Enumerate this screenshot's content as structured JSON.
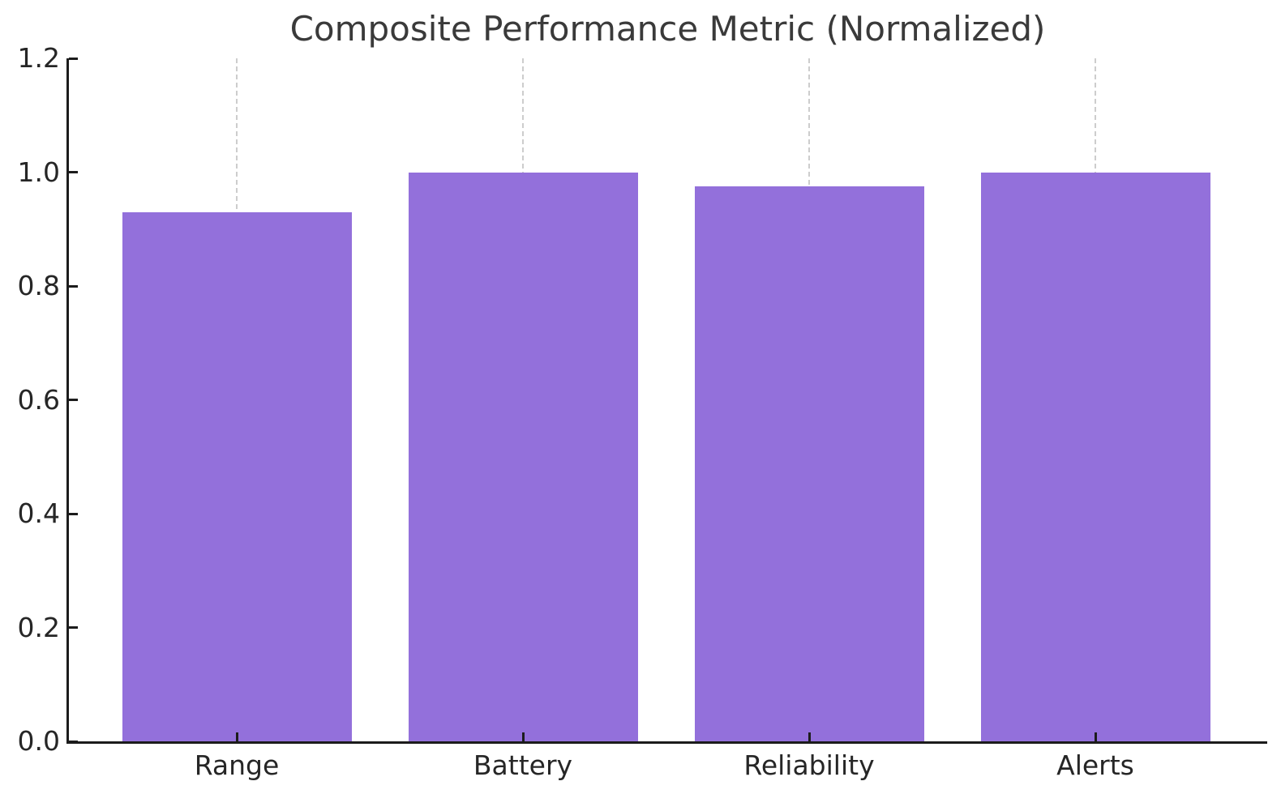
{
  "chart_data": {
    "type": "bar",
    "title": "Composite Performance Metric (Normalized)",
    "categories": [
      "Range",
      "Battery",
      "Reliability",
      "Alerts"
    ],
    "values": [
      0.93,
      1.0,
      0.975,
      1.0
    ],
    "xlabel": "",
    "ylabel": "",
    "ylim": [
      0.0,
      1.2
    ],
    "ytick_labels": [
      "0.0",
      "0.2",
      "0.4",
      "0.6",
      "0.8",
      "1.0",
      "1.2"
    ],
    "grid": "vertical-dashed-at-category-centers",
    "legend_position": "none",
    "tick_direction": "in",
    "colors": {
      "bar_fill": "#9370DB",
      "gridline": "#cdcdcd",
      "axis_line": "#1c1c1c",
      "title_text": "#3a3a3a",
      "tick_text": "#262626",
      "background": "#ffffff"
    }
  }
}
